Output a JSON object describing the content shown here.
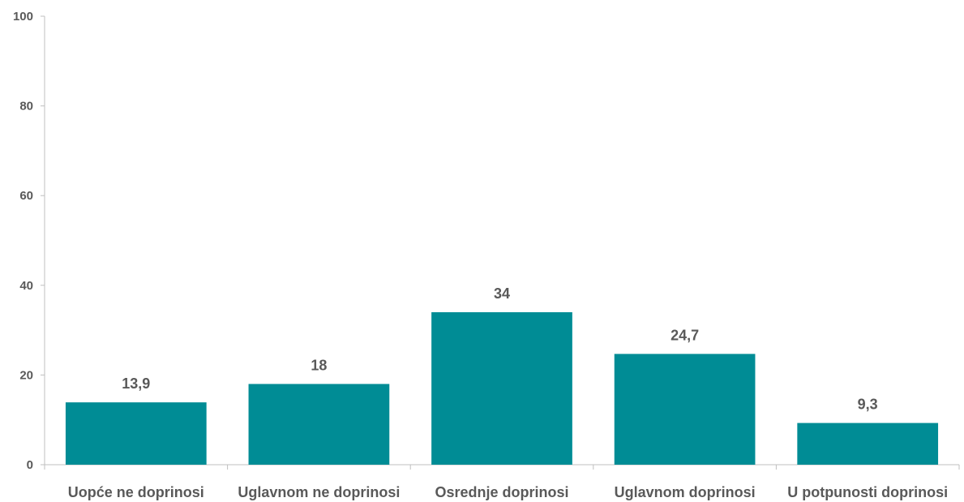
{
  "chart_data": {
    "type": "bar",
    "categories": [
      "Uopće ne doprinosi",
      "Uglavnom ne doprinosi",
      "Osrednje doprinosi",
      "Uglavnom doprinosi",
      "U potpunosti doprinosi"
    ],
    "values": [
      13.9,
      18,
      34,
      24.7,
      9.3
    ],
    "value_labels": [
      "13,9",
      "18",
      "34",
      "24,7",
      "9,3"
    ],
    "title": "",
    "xlabel": "",
    "ylabel": "",
    "ylim": [
      0,
      100
    ],
    "yticks": [
      0,
      20,
      40,
      60,
      80,
      100
    ],
    "ytick_labels": [
      "0",
      "20",
      "40",
      "60",
      "80",
      "100"
    ],
    "grid": false,
    "bar_color": "#008C95"
  }
}
